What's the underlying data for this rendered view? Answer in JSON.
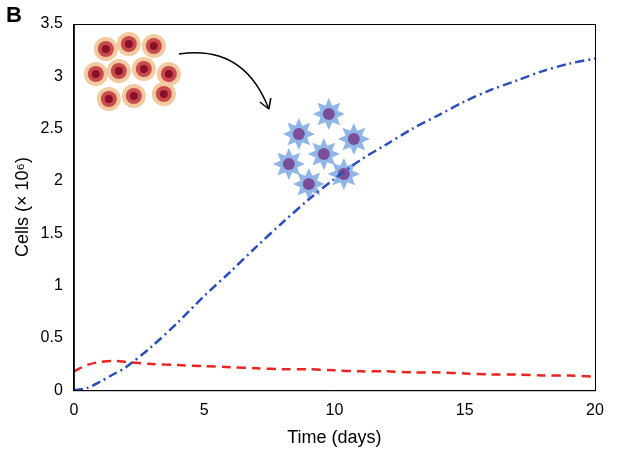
{
  "chart_data": {
    "type": "line",
    "panel_label": "B",
    "x_label": "Time (days)",
    "y_label": "Cells (× 10⁶)",
    "x": [
      0,
      0.5,
      1,
      1.5,
      2,
      3,
      4,
      5,
      6,
      7,
      8,
      9,
      10,
      11,
      12,
      13,
      14,
      15,
      16,
      17,
      18,
      19,
      20
    ],
    "series": [
      {
        "color": "#2b4fb8",
        "line_style": "dashdot",
        "values": [
          0,
          0.02,
          0.08,
          0.15,
          0.22,
          0.42,
          0.65,
          0.9,
          1.13,
          1.37,
          1.6,
          1.82,
          2.02,
          2.2,
          2.35,
          2.5,
          2.63,
          2.76,
          2.87,
          2.96,
          3.05,
          3.12,
          3.17
        ]
      },
      {
        "color": "#e8261f",
        "line_style": "dashed",
        "values": [
          0.18,
          0.24,
          0.27,
          0.28,
          0.27,
          0.25,
          0.24,
          0.23,
          0.22,
          0.21,
          0.2,
          0.2,
          0.19,
          0.18,
          0.18,
          0.17,
          0.17,
          0.16,
          0.15,
          0.15,
          0.14,
          0.14,
          0.13
        ]
      }
    ],
    "xlim": [
      0,
      20
    ],
    "xticks": [
      0,
      5,
      10,
      15,
      20
    ],
    "ylim": [
      0,
      3.5
    ],
    "yticks": [
      0,
      0.5,
      1,
      1.5,
      2,
      2.5,
      3,
      3.5
    ],
    "grid": false
  }
}
